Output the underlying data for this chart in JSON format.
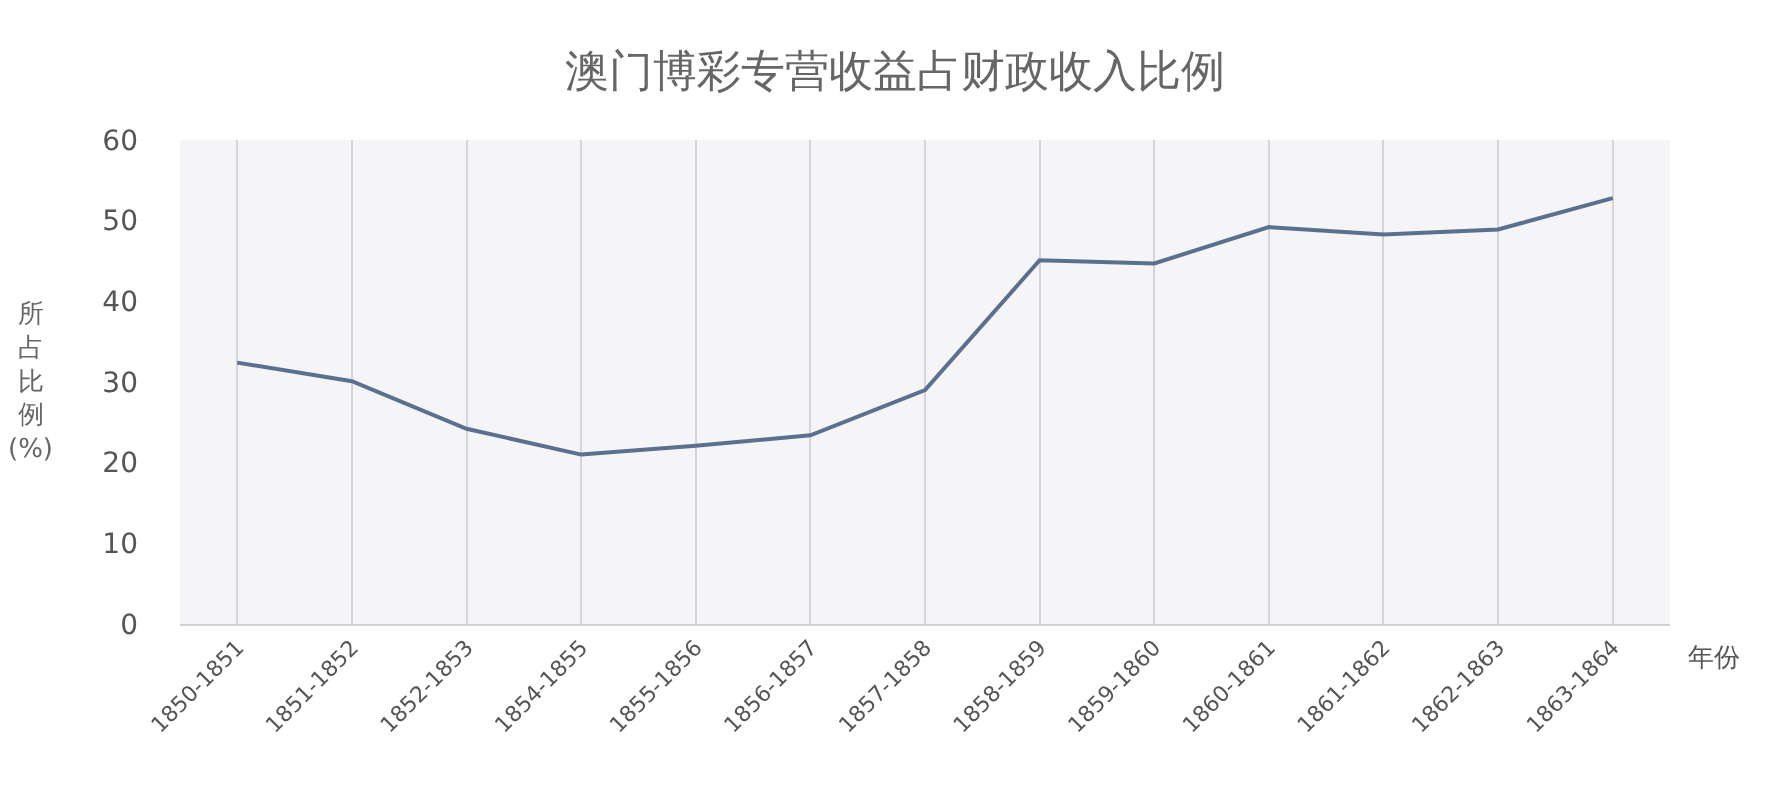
{
  "chart_data": {
    "type": "line",
    "title": "澳门博彩专营收益占财政收入比例",
    "xlabel": "年份",
    "ylabel": "所占比例(%)",
    "categories": [
      "1850-1851",
      "1851-1852",
      "1852-1853",
      "1854-1855",
      "1855-1856",
      "1856-1857",
      "1857-1858",
      "1858-1859",
      "1859-1860",
      "1860-1861",
      "1861-1862",
      "1862-1863",
      "1863-1864"
    ],
    "series": [
      {
        "color": "#5b6f8e",
        "values": [
          32.4,
          30.1,
          24.2,
          21.0,
          22.1,
          23.4,
          29.0,
          45.1,
          44.7,
          49.2,
          48.3,
          48.9,
          52.8
        ]
      }
    ],
    "ylim": [
      0,
      60
    ],
    "yticks": [
      0,
      10,
      20,
      30,
      40,
      50,
      60
    ],
    "grid": "x",
    "marker": "none",
    "line_style": "solid"
  }
}
